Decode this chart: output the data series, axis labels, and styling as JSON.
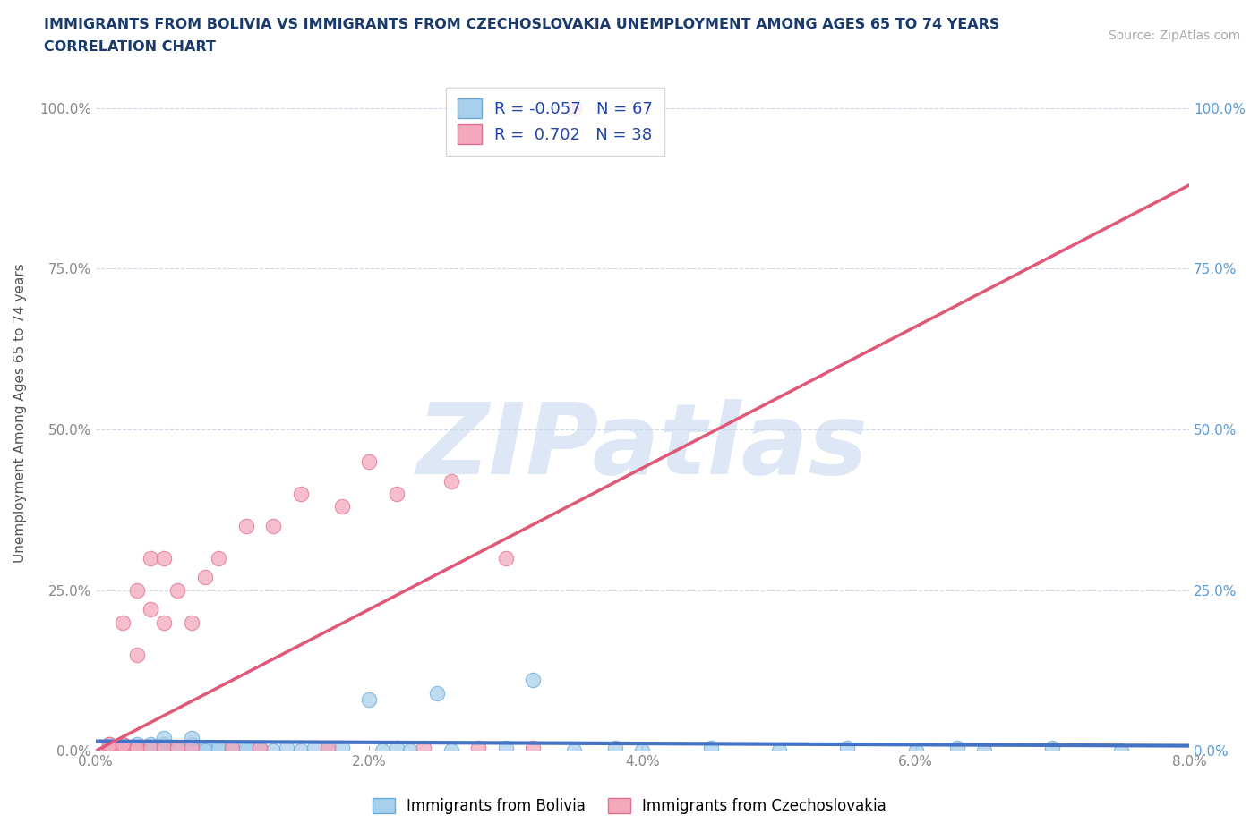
{
  "title_line1": "IMMIGRANTS FROM BOLIVIA VS IMMIGRANTS FROM CZECHOSLOVAKIA UNEMPLOYMENT AMONG AGES 65 TO 74 YEARS",
  "title_line2": "CORRELATION CHART",
  "title_color": "#1a3a6b",
  "source_text": "Source: ZipAtlas.com",
  "ylabel": "Unemployment Among Ages 65 to 74 years",
  "xlim": [
    0.0,
    0.08
  ],
  "ylim": [
    0.0,
    1.05
  ],
  "xtick_labels": [
    "0.0%",
    "2.0%",
    "4.0%",
    "6.0%",
    "8.0%"
  ],
  "xtick_values": [
    0.0,
    0.02,
    0.04,
    0.06,
    0.08
  ],
  "ytick_labels": [
    "0.0%",
    "25.0%",
    "50.0%",
    "75.0%",
    "100.0%"
  ],
  "ytick_values": [
    0.0,
    0.25,
    0.5,
    0.75,
    1.0
  ],
  "bolivia_color": "#a8d0ec",
  "bolivia_edge": "#6aaad4",
  "czechoslovakia_color": "#f4a8bc",
  "czechoslovakia_edge": "#e07090",
  "bolivia_R": -0.057,
  "bolivia_N": 67,
  "czechoslovakia_R": 0.702,
  "czechoslovakia_N": 38,
  "regression_color_bolivia": "#4472c4",
  "regression_color_czechoslovakia": "#e05878",
  "watermark": "ZIPatlas",
  "watermark_color": "#c8d8f0",
  "grid_color": "#d0d8e8",
  "legend_label_bolivia": "Immigrants from Bolivia",
  "legend_label_czechoslovakia": "Immigrants from Czechoslovakia",
  "bolivia_x": [
    0.001,
    0.001,
    0.001,
    0.001,
    0.002,
    0.002,
    0.002,
    0.002,
    0.002,
    0.003,
    0.003,
    0.003,
    0.003,
    0.003,
    0.003,
    0.004,
    0.004,
    0.004,
    0.004,
    0.005,
    0.005,
    0.005,
    0.005,
    0.005,
    0.005,
    0.006,
    0.006,
    0.006,
    0.007,
    0.007,
    0.007,
    0.007,
    0.008,
    0.008,
    0.009,
    0.009,
    0.01,
    0.01,
    0.011,
    0.011,
    0.012,
    0.012,
    0.013,
    0.014,
    0.015,
    0.016,
    0.017,
    0.018,
    0.02,
    0.021,
    0.022,
    0.023,
    0.025,
    0.026,
    0.03,
    0.032,
    0.035,
    0.038,
    0.04,
    0.045,
    0.05,
    0.055,
    0.06,
    0.063,
    0.065,
    0.07,
    0.075
  ],
  "bolivia_y": [
    0.0,
    0.0,
    0.005,
    0.01,
    0.0,
    0.005,
    0.01,
    0.0,
    0.0,
    0.0,
    0.005,
    0.01,
    0.0,
    0.0,
    0.005,
    0.0,
    0.005,
    0.01,
    0.0,
    0.0,
    0.005,
    0.01,
    0.0,
    0.005,
    0.02,
    0.0,
    0.005,
    0.0,
    0.0,
    0.005,
    0.01,
    0.02,
    0.005,
    0.0,
    0.0,
    0.005,
    0.0,
    0.005,
    0.0,
    0.005,
    0.0,
    0.005,
    0.0,
    0.005,
    0.0,
    0.005,
    0.0,
    0.005,
    0.08,
    0.0,
    0.005,
    0.0,
    0.09,
    0.0,
    0.005,
    0.11,
    0.0,
    0.005,
    0.0,
    0.005,
    0.0,
    0.005,
    0.0,
    0.005,
    0.0,
    0.005,
    0.0
  ],
  "czechoslovakia_x": [
    0.001,
    0.001,
    0.001,
    0.002,
    0.002,
    0.002,
    0.002,
    0.003,
    0.003,
    0.003,
    0.003,
    0.004,
    0.004,
    0.004,
    0.005,
    0.005,
    0.005,
    0.006,
    0.006,
    0.007,
    0.007,
    0.008,
    0.009,
    0.01,
    0.011,
    0.012,
    0.013,
    0.015,
    0.017,
    0.018,
    0.02,
    0.022,
    0.024,
    0.026,
    0.028,
    0.03,
    0.032,
    0.035
  ],
  "czechoslovakia_y": [
    0.0,
    0.005,
    0.01,
    0.0,
    0.005,
    0.01,
    0.2,
    0.0,
    0.15,
    0.25,
    0.005,
    0.22,
    0.3,
    0.005,
    0.2,
    0.005,
    0.3,
    0.005,
    0.25,
    0.2,
    0.005,
    0.27,
    0.3,
    0.005,
    0.35,
    0.005,
    0.35,
    0.4,
    0.005,
    0.38,
    0.45,
    0.4,
    0.005,
    0.42,
    0.005,
    0.3,
    0.005,
    1.0
  ],
  "regression_bolivia_x0": 0.0,
  "regression_bolivia_y0": 0.015,
  "regression_bolivia_x1": 0.08,
  "regression_bolivia_y1": 0.008,
  "regression_czech_x0": 0.0,
  "regression_czech_y0": 0.0,
  "regression_czech_x1": 0.08,
  "regression_czech_y1": 0.88
}
